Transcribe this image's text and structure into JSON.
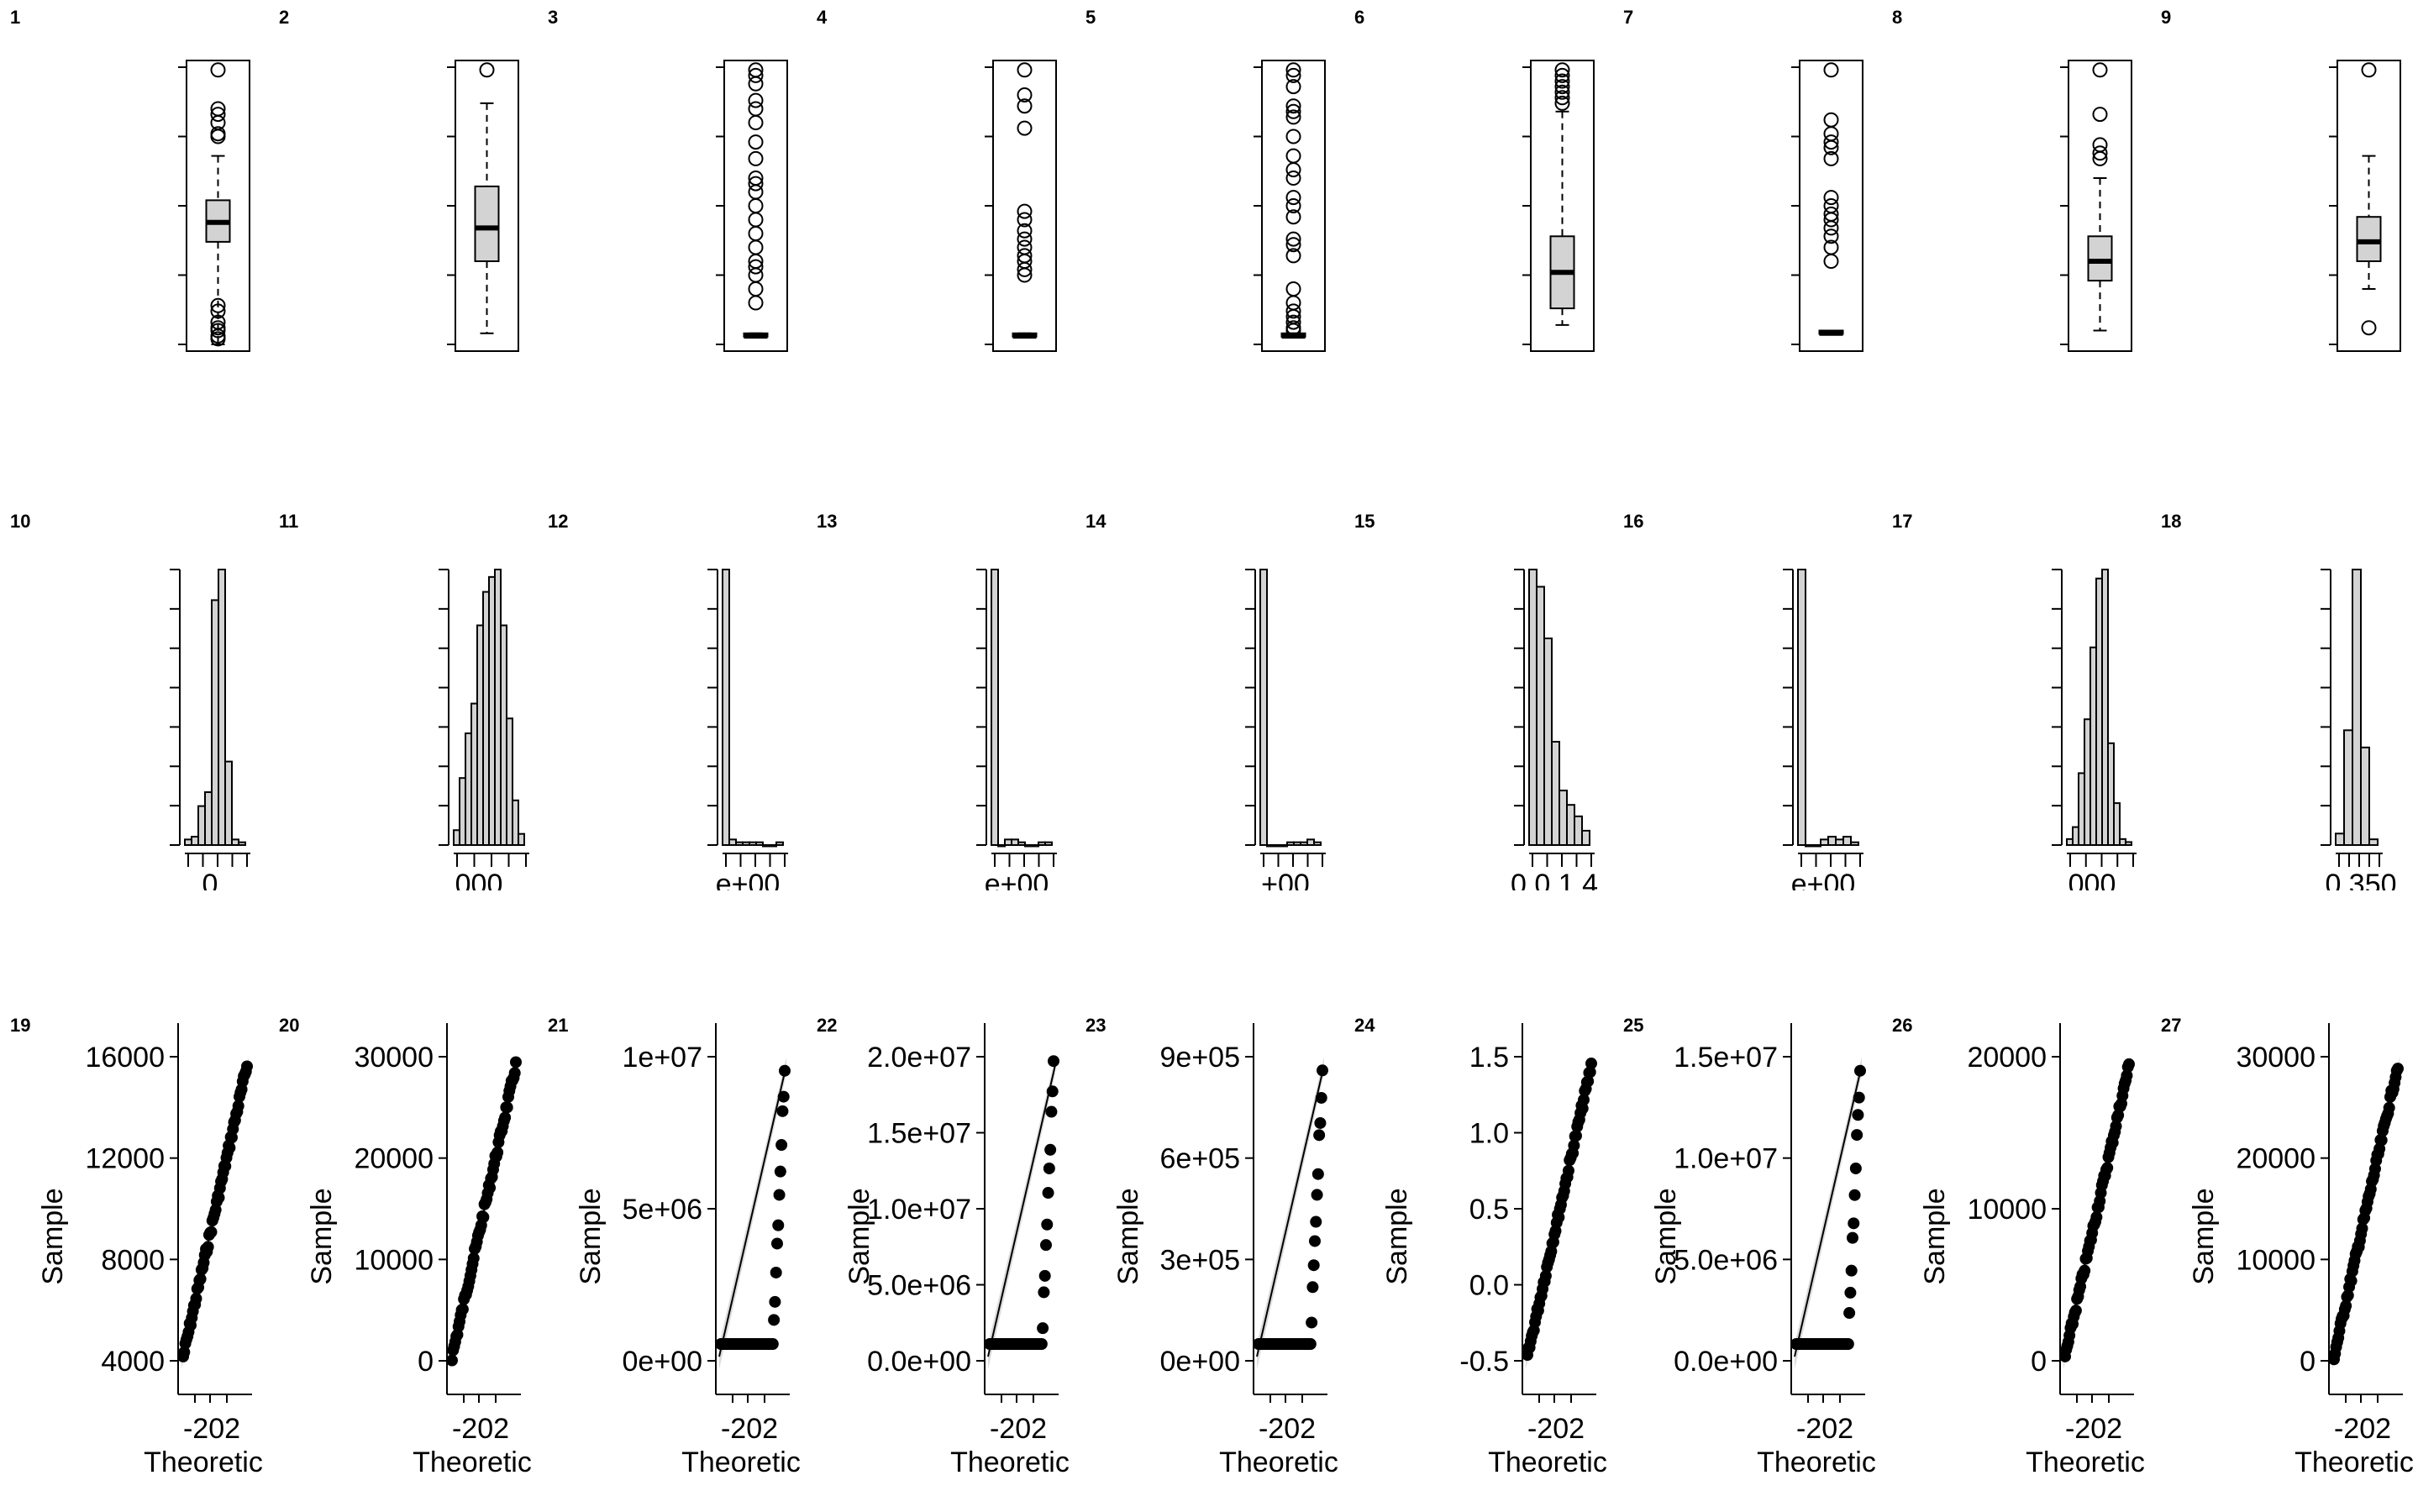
{
  "panel_labels": [
    "1",
    "2",
    "3",
    "4",
    "5",
    "6",
    "7",
    "8",
    "9",
    "10",
    "11",
    "12",
    "13",
    "14",
    "15",
    "16",
    "17",
    "18",
    "19",
    "20",
    "21",
    "22",
    "23",
    "24",
    "25",
    "26",
    "27"
  ],
  "chart_data": [
    {
      "panel": "1",
      "type": "boxplot",
      "y": {
        "min": 0,
        "q1": 0.37,
        "median": 0.44,
        "q3": 0.52,
        "max": 0.68,
        "outliers": [
          0.99,
          0.85,
          0.83,
          0.8,
          0.76,
          0.75,
          0.14,
          0.12,
          0.08,
          0.06,
          0.05,
          0.03,
          0.02
        ]
      }
    },
    {
      "panel": "2",
      "type": "boxplot",
      "y": {
        "min": 0.04,
        "q1": 0.3,
        "median": 0.42,
        "q3": 0.57,
        "max": 0.87,
        "outliers": [
          0.99
        ]
      }
    },
    {
      "panel": "3",
      "type": "boxplot",
      "y": {
        "min": 0.03,
        "q1": 0.03,
        "median": 0.03,
        "q3": 0.04,
        "max": 0.04,
        "outliers": [
          0.99,
          0.97,
          0.94,
          0.88,
          0.85,
          0.8,
          0.73,
          0.67,
          0.6,
          0.58,
          0.55,
          0.5,
          0.45,
          0.4,
          0.35,
          0.3,
          0.28,
          0.25,
          0.2,
          0.15
        ]
      }
    },
    {
      "panel": "4",
      "type": "boxplot",
      "y": {
        "min": 0.03,
        "q1": 0.03,
        "median": 0.03,
        "q3": 0.04,
        "max": 0.04,
        "outliers": [
          0.99,
          0.9,
          0.86,
          0.78,
          0.48,
          0.45,
          0.41,
          0.38,
          0.35,
          0.32,
          0.3,
          0.27,
          0.25
        ]
      }
    },
    {
      "panel": "5",
      "type": "boxplot",
      "y": {
        "min": 0.03,
        "q1": 0.03,
        "median": 0.03,
        "q3": 0.04,
        "max": 0.04,
        "outliers": [
          0.99,
          0.97,
          0.93,
          0.86,
          0.84,
          0.82,
          0.75,
          0.68,
          0.63,
          0.6,
          0.53,
          0.5,
          0.46,
          0.38,
          0.36,
          0.32,
          0.2,
          0.15,
          0.12,
          0.1,
          0.08,
          0.06,
          0.05
        ]
      }
    },
    {
      "panel": "6",
      "type": "boxplot",
      "y": {
        "min": 0.07,
        "q1": 0.13,
        "median": 0.26,
        "q3": 0.39,
        "max": 0.84,
        "outliers": [
          0.99,
          0.97,
          0.95,
          0.93,
          0.91,
          0.89,
          0.87
        ]
      }
    },
    {
      "panel": "7",
      "type": "boxplot",
      "y": {
        "min": 0.04,
        "q1": 0.04,
        "median": 0.04,
        "q3": 0.05,
        "max": 0.05,
        "outliers": [
          0.99,
          0.81,
          0.76,
          0.73,
          0.71,
          0.67,
          0.53,
          0.5,
          0.47,
          0.45,
          0.42,
          0.39,
          0.35,
          0.3
        ]
      }
    },
    {
      "panel": "8",
      "type": "boxplot",
      "y": {
        "min": 0.05,
        "q1": 0.23,
        "median": 0.3,
        "q3": 0.39,
        "max": 0.6,
        "outliers": [
          0.99,
          0.83,
          0.72,
          0.69,
          0.67
        ]
      }
    },
    {
      "panel": "9",
      "type": "boxplot",
      "y": {
        "min": 0.2,
        "q1": 0.3,
        "median": 0.37,
        "q3": 0.46,
        "max": 0.68,
        "outliers": [
          0.99,
          0.06
        ]
      }
    },
    {
      "panel": "10",
      "type": "histogram",
      "counts": [
        2,
        3,
        14,
        19,
        88,
        99,
        30,
        2,
        1
      ],
      "x_tick_text": "0"
    },
    {
      "panel": "11",
      "type": "histogram",
      "counts": [
        4,
        18,
        30,
        38,
        59,
        68,
        72,
        74,
        59,
        34,
        12,
        3
      ],
      "x_tick_text": "000"
    },
    {
      "panel": "12",
      "type": "histogram",
      "counts": [
        99,
        2,
        1,
        1,
        1,
        1,
        0,
        0,
        1
      ],
      "x_tick_text": "e+00"
    },
    {
      "panel": "13",
      "type": "histogram",
      "counts": [
        99,
        0,
        2,
        2,
        1,
        0,
        0,
        1,
        1
      ],
      "x_tick_text": "e+00"
    },
    {
      "panel": "14",
      "type": "histogram",
      "counts": [
        99,
        0,
        0,
        0,
        1,
        1,
        1,
        2,
        1
      ],
      "x_tick_text": "+00"
    },
    {
      "panel": "15",
      "type": "histogram",
      "counts": [
        96,
        90,
        72,
        36,
        19,
        14,
        10,
        5
      ],
      "x_tick_text": "0.0 1.4"
    },
    {
      "panel": "16",
      "type": "histogram",
      "counts": [
        99,
        0,
        0,
        2,
        3,
        2,
        3,
        1
      ],
      "x_tick_text": "e+00"
    },
    {
      "panel": "17",
      "type": "histogram",
      "counts": [
        2,
        6,
        24,
        42,
        66,
        89,
        92,
        34,
        14,
        2,
        1
      ],
      "x_tick_text": "000"
    },
    {
      "panel": "18",
      "type": "histogram",
      "counts": [
        4,
        40,
        96,
        34,
        2
      ],
      "x_tick_text": "0.350"
    },
    {
      "panel": "19",
      "type": "qq",
      "ylabel": "Sample",
      "xlabel": "Theoretic",
      "y_ticks": [
        "16000",
        "12000",
        "8000",
        "4000"
      ],
      "x_tick_text": "-20 2"
    },
    {
      "panel": "20",
      "type": "qq",
      "ylabel": "Sample",
      "xlabel": "Theoretic",
      "y_ticks": [
        "30000",
        "20000",
        "10000",
        "0"
      ],
      "x_tick_text": "-20 2"
    },
    {
      "panel": "21",
      "type": "qq",
      "ylabel": "Sample",
      "xlabel": "Theoretic",
      "y_ticks": [
        "1e+07",
        "5e+06",
        "0e+00"
      ],
      "x_tick_text": "-20 2"
    },
    {
      "panel": "22",
      "type": "qq",
      "ylabel": "Sample",
      "xlabel": "Theoretic",
      "y_ticks": [
        "2.0e+07",
        "1.5e+07",
        "1.0e+07",
        "5.0e+06",
        "0.0e+00"
      ],
      "x_tick_text": "-20 2"
    },
    {
      "panel": "23",
      "type": "qq",
      "ylabel": "Sample",
      "xlabel": "Theoretic",
      "y_ticks": [
        "9e+05",
        "6e+05",
        "3e+05",
        "0e+00"
      ],
      "x_tick_text": "-20 2"
    },
    {
      "panel": "24",
      "type": "qq",
      "ylabel": "Sample",
      "xlabel": "Theoretic",
      "y_ticks": [
        "1.5",
        "1.0",
        "0.5",
        "0.0",
        "-0.5"
      ],
      "x_tick_text": "-20 2"
    },
    {
      "panel": "25",
      "type": "qq",
      "ylabel": "Sample",
      "xlabel": "Theoretic",
      "y_ticks": [
        "1.5e+07",
        "1.0e+07",
        "5.0e+06",
        "0.0e+00"
      ],
      "x_tick_text": "-20 2"
    },
    {
      "panel": "26",
      "type": "qq",
      "ylabel": "Sample",
      "xlabel": "Theoretic",
      "y_ticks": [
        "20000",
        "10000",
        "0"
      ],
      "x_tick_text": "-20 2"
    },
    {
      "panel": "27",
      "type": "qq",
      "ylabel": "Sample",
      "xlabel": "Theoretic",
      "y_ticks": [
        "30000",
        "20000",
        "10000",
        "0"
      ],
      "x_tick_text": "-20 2"
    }
  ]
}
